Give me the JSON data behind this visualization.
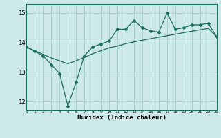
{
  "title": "",
  "xlabel": "Humidex (Indice chaleur)",
  "ylabel": "",
  "x_values": [
    0,
    1,
    2,
    3,
    4,
    5,
    6,
    7,
    8,
    9,
    10,
    11,
    12,
    13,
    14,
    15,
    16,
    17,
    18,
    19,
    20,
    21,
    22,
    23
  ],
  "line1_y": [
    13.85,
    13.7,
    13.55,
    13.25,
    12.95,
    11.85,
    12.65,
    13.55,
    13.85,
    13.95,
    14.05,
    14.45,
    14.45,
    14.75,
    14.5,
    14.4,
    14.35,
    15.0,
    14.45,
    14.5,
    14.6,
    14.6,
    14.65,
    14.2
  ],
  "line2_y": [
    13.85,
    13.72,
    13.6,
    13.48,
    13.38,
    13.28,
    13.38,
    13.5,
    13.62,
    13.72,
    13.82,
    13.88,
    13.96,
    14.02,
    14.08,
    14.13,
    14.18,
    14.23,
    14.28,
    14.33,
    14.38,
    14.43,
    14.48,
    14.2
  ],
  "xlim": [
    0,
    23
  ],
  "ylim": [
    11.7,
    15.3
  ],
  "yticks": [
    12,
    13,
    14,
    15
  ],
  "xticks": [
    0,
    1,
    2,
    3,
    4,
    5,
    6,
    7,
    8,
    9,
    10,
    11,
    12,
    13,
    14,
    15,
    16,
    17,
    18,
    19,
    20,
    21,
    22,
    23
  ],
  "line_color": "#1a6b5a",
  "bg_color": "#cce8e8",
  "grid_color": "#aacece",
  "marker": "D",
  "marker_size": 2.0,
  "line_width": 0.9
}
